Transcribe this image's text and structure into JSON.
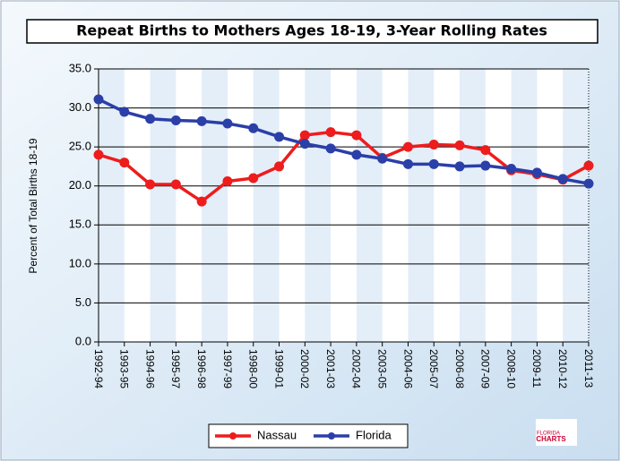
{
  "chart_data": {
    "type": "line",
    "title": "Repeat Births to Mothers Ages 18-19, 3-Year Rolling Rates",
    "y_label": "Percent of Total Births 18-19",
    "categories": [
      "1992-94",
      "1993-95",
      "1994-96",
      "1995-97",
      "1996-98",
      "1997-99",
      "1998-00",
      "1999-01",
      "2000-02",
      "2001-03",
      "2002-04",
      "2003-05",
      "2004-06",
      "2005-07",
      "2006-08",
      "2007-09",
      "2008-10",
      "2009-11",
      "2010-12",
      "2011-13"
    ],
    "series": [
      {
        "name": "Nassau",
        "color": "#ee1c1c",
        "values": [
          24.0,
          23.0,
          20.2,
          20.2,
          18.0,
          20.6,
          21.0,
          22.5,
          26.5,
          26.9,
          26.5,
          23.6,
          25.0,
          25.3,
          25.2,
          24.6,
          22.0,
          21.5,
          20.8,
          22.6
        ]
      },
      {
        "name": "Florida",
        "color": "#2b3fa8",
        "values": [
          31.1,
          29.5,
          28.6,
          28.4,
          28.3,
          28.0,
          27.4,
          26.3,
          25.4,
          24.8,
          24.0,
          23.5,
          22.8,
          22.8,
          22.5,
          22.6,
          22.2,
          21.7,
          20.9,
          20.3
        ]
      }
    ],
    "ylim": [
      0,
      35
    ],
    "yticks": [
      {
        "value": 0,
        "label": "0.0"
      },
      {
        "value": 5,
        "label": "5.0"
      },
      {
        "value": 10,
        "label": "10.0"
      },
      {
        "value": 15,
        "label": "15.0"
      },
      {
        "value": 20,
        "label": "20.0"
      },
      {
        "value": 25,
        "label": "25.0"
      },
      {
        "value": 30,
        "label": "30.0"
      },
      {
        "value": 35,
        "label": "35.0"
      }
    ],
    "grid": true,
    "legend": "bottom",
    "logo": [
      "FLORIDA",
      "CHARTS"
    ]
  }
}
